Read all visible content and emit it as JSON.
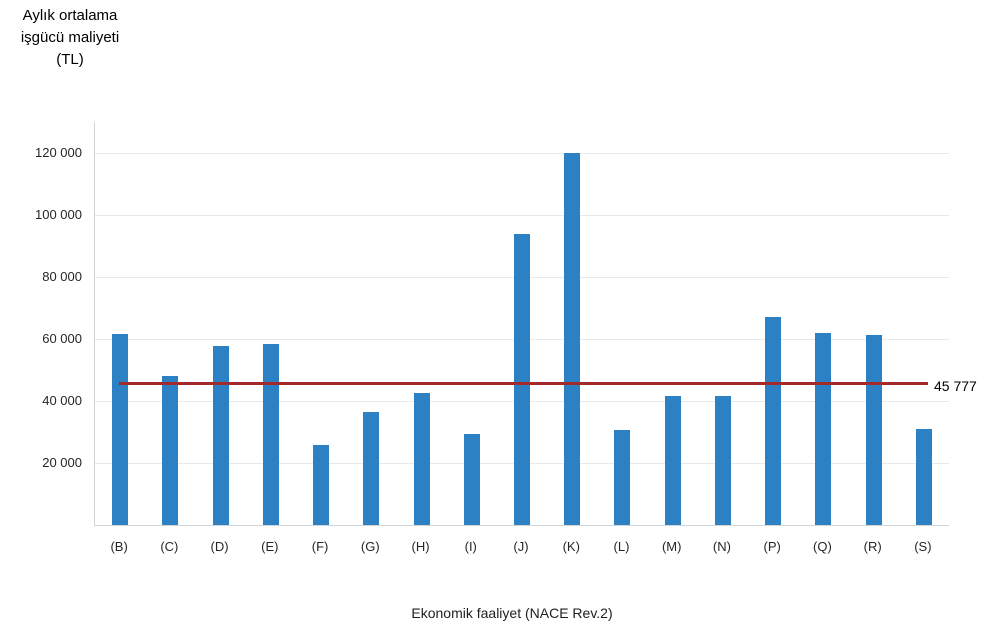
{
  "title": {
    "line1": "Aylık ortalama",
    "line2": "işgücü maliyeti",
    "line3": "(TL)"
  },
  "chart_data": {
    "type": "bar",
    "title": "Aylık ortalama işgücü maliyeti (TL)",
    "xlabel": "Ekonomik faaliyet (NACE Rev.2)",
    "ylabel": "Aylık ortalama işgücü maliyeti (TL)",
    "categories": [
      "(B)",
      "(C)",
      "(D)",
      "(E)",
      "(F)",
      "(G)",
      "(H)",
      "(I)",
      "(J)",
      "(K)",
      "(L)",
      "(M)",
      "(N)",
      "(P)",
      "(Q)",
      "(R)",
      "(S)"
    ],
    "values": [
      61600,
      48200,
      57600,
      58300,
      25800,
      36400,
      42500,
      29400,
      93800,
      120000,
      30700,
      41500,
      41500,
      67200,
      61900,
      61300,
      30900
    ],
    "ylim": [
      0,
      130000
    ],
    "yticks": [
      {
        "value": 20000,
        "label": "20 000"
      },
      {
        "value": 40000,
        "label": "40 000"
      },
      {
        "value": 60000,
        "label": "60 000"
      },
      {
        "value": 80000,
        "label": "80 000"
      },
      {
        "value": 100000,
        "label": "100 000"
      },
      {
        "value": 120000,
        "label": "120 000"
      }
    ],
    "grid": "horizontal",
    "legend": "none",
    "bar_color": "#2c81c4",
    "average_line": {
      "value": 45777,
      "label": "45 777",
      "color": "#a32a2a"
    }
  }
}
